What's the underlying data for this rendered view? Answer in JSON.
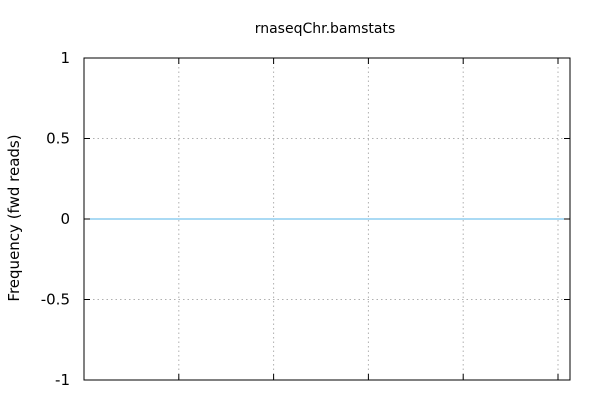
{
  "chart_data": {
    "type": "line",
    "title": "rnaseqChr.bamstats",
    "xlabel": "",
    "ylabel": "Frequency (fwd reads)",
    "ylim": [
      -1,
      1
    ],
    "y_ticks": [
      {
        "value": 1,
        "label": "1"
      },
      {
        "value": 0.5,
        "label": "0.5"
      },
      {
        "value": 0,
        "label": "0"
      },
      {
        "value": -0.5,
        "label": "-0.5"
      },
      {
        "value": -1,
        "label": "-1"
      }
    ],
    "x_tick_count": 6,
    "grid": true,
    "series": [
      {
        "values": [
          0,
          0
        ],
        "color": "#56b4e9"
      }
    ]
  }
}
